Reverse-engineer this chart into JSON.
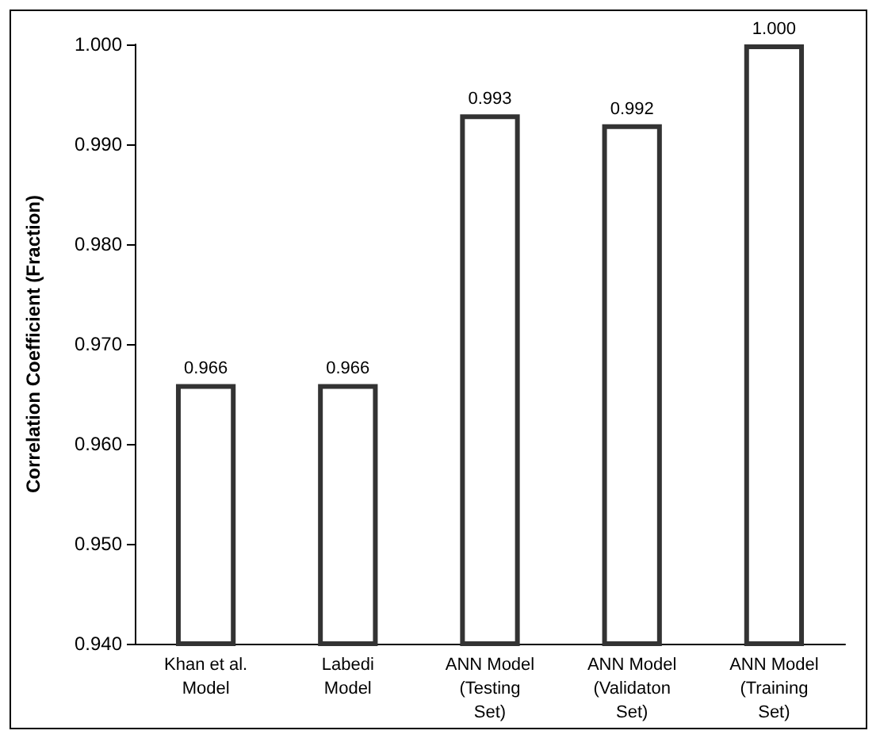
{
  "chart_data": {
    "type": "bar",
    "ylabel": "Correlation Coefficient (Fraction)",
    "categories": [
      "Khan et al.\nModel",
      "Labedi\nModel",
      "ANN Model\n(Testing\nSet)",
      "ANN Model\n(Validaton\nSet)",
      "ANN Model\n(Training\nSet)"
    ],
    "values": [
      0.966,
      0.966,
      0.993,
      0.992,
      1.0
    ],
    "value_labels": [
      "0.966",
      "0.966",
      "0.993",
      "0.992",
      "1.000"
    ],
    "color": "#333333",
    "ylim": [
      0.94,
      1.0
    ],
    "yticks": [
      {
        "value": 0.94,
        "label": "0.940"
      },
      {
        "value": 0.95,
        "label": "0.950"
      },
      {
        "value": 0.96,
        "label": "0.960"
      },
      {
        "value": 0.97,
        "label": "0.970"
      },
      {
        "value": 0.98,
        "label": "0.980"
      },
      {
        "value": 0.99,
        "label": "0.990"
      },
      {
        "value": 1.0,
        "label": "1.000"
      }
    ],
    "grid": false
  }
}
